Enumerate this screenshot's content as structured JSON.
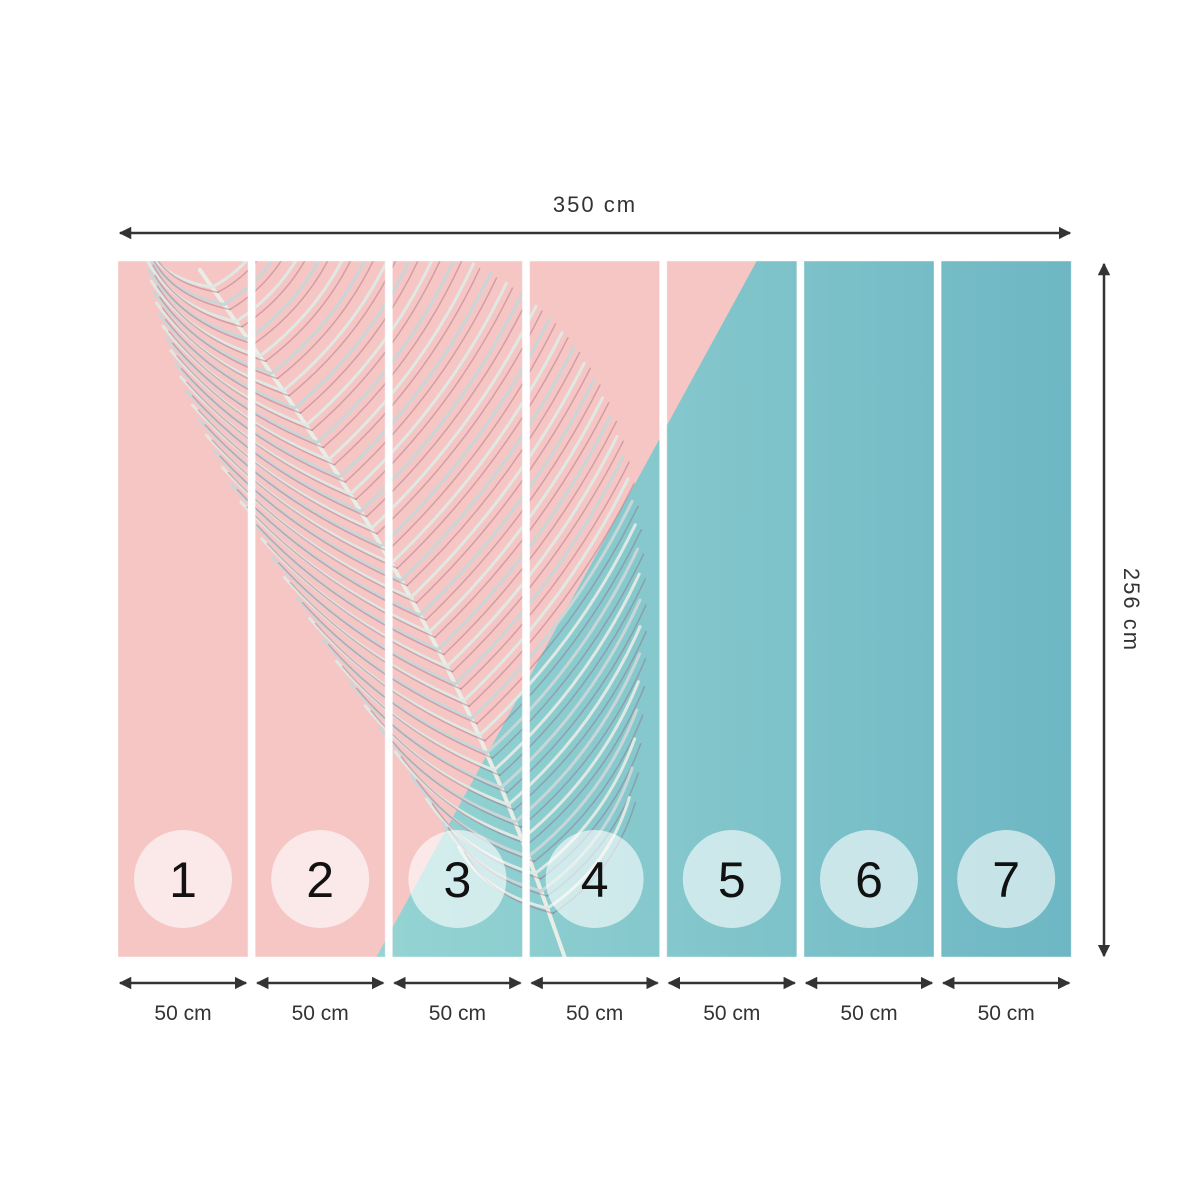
{
  "width_label": "350 cm",
  "height_label": "256 cm",
  "panels": [
    {
      "number": "1",
      "width": "50 cm"
    },
    {
      "number": "2",
      "width": "50 cm"
    },
    {
      "number": "3",
      "width": "50 cm"
    },
    {
      "number": "4",
      "width": "50 cm"
    },
    {
      "number": "5",
      "width": "50 cm"
    },
    {
      "number": "6",
      "width": "50 cm"
    },
    {
      "number": "7",
      "width": "50 cm"
    }
  ]
}
